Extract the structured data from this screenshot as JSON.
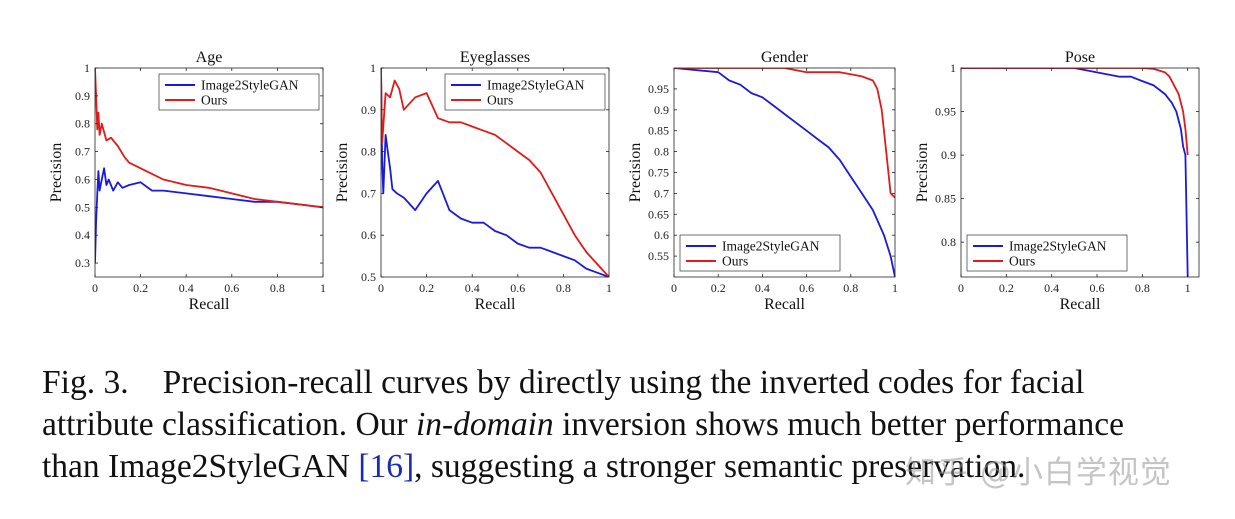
{
  "colors": {
    "image2stylegan": "#1a1adf",
    "ours": "#e01b1b"
  },
  "chart_data": [
    {
      "type": "line",
      "title": "Age",
      "xlabel": "Recall",
      "ylabel": "Precision",
      "xlim": [
        0,
        1
      ],
      "ylim": [
        0.25,
        1
      ],
      "xticks": [
        0,
        0.2,
        0.4,
        0.6,
        0.8,
        1
      ],
      "xtick_labels": [
        "0",
        "0.2",
        "0.4",
        "0.6",
        "0.8",
        "1"
      ],
      "yticks": [
        0.3,
        0.4,
        0.5,
        0.6,
        0.7,
        0.8,
        0.9,
        1
      ],
      "ytick_labels": [
        "0.3",
        "0.4",
        "0.5",
        "0.6",
        "0.7",
        "0.8",
        "0.9",
        "1"
      ],
      "legend": "top-right",
      "series": [
        {
          "name": "Image2StyleGAN",
          "color": "#1a1adf",
          "x": [
            0,
            0.005,
            0.01,
            0.015,
            0.02,
            0.03,
            0.04,
            0.05,
            0.06,
            0.08,
            0.1,
            0.12,
            0.15,
            0.2,
            0.25,
            0.3,
            0.4,
            0.5,
            0.6,
            0.7,
            0.8,
            0.9,
            1.0
          ],
          "y": [
            0.3,
            0.45,
            0.55,
            0.63,
            0.56,
            0.6,
            0.64,
            0.58,
            0.6,
            0.56,
            0.59,
            0.57,
            0.58,
            0.59,
            0.56,
            0.56,
            0.55,
            0.54,
            0.53,
            0.52,
            0.52,
            0.51,
            0.5
          ]
        },
        {
          "name": "Ours",
          "color": "#e01b1b",
          "x": [
            0,
            0.005,
            0.01,
            0.015,
            0.02,
            0.03,
            0.05,
            0.07,
            0.1,
            0.13,
            0.15,
            0.2,
            0.25,
            0.3,
            0.35,
            0.4,
            0.5,
            0.6,
            0.7,
            0.8,
            0.9,
            1.0
          ],
          "y": [
            1.0,
            0.9,
            0.78,
            0.84,
            0.76,
            0.8,
            0.74,
            0.75,
            0.72,
            0.68,
            0.66,
            0.64,
            0.62,
            0.6,
            0.59,
            0.58,
            0.57,
            0.55,
            0.53,
            0.52,
            0.51,
            0.5
          ]
        }
      ]
    },
    {
      "type": "line",
      "title": "Eyeglasses",
      "xlabel": "Recall",
      "ylabel": "Precision",
      "xlim": [
        0,
        1
      ],
      "ylim": [
        0.5,
        1
      ],
      "xticks": [
        0,
        0.2,
        0.4,
        0.6,
        0.8,
        1
      ],
      "xtick_labels": [
        "0",
        "0.2",
        "0.4",
        "0.6",
        "0.8",
        "1"
      ],
      "yticks": [
        0.5,
        0.6,
        0.7,
        0.8,
        0.9,
        1
      ],
      "ytick_labels": [
        "0.5",
        "0.6",
        "0.7",
        "0.8",
        "0.9",
        "1"
      ],
      "legend": "top-right",
      "series": [
        {
          "name": "Image2StyleGAN",
          "color": "#1a1adf",
          "x": [
            0,
            0.005,
            0.01,
            0.02,
            0.03,
            0.04,
            0.05,
            0.07,
            0.1,
            0.15,
            0.2,
            0.25,
            0.3,
            0.35,
            0.4,
            0.45,
            0.5,
            0.55,
            0.6,
            0.65,
            0.7,
            0.75,
            0.8,
            0.85,
            0.9,
            0.95,
            1.0
          ],
          "y": [
            1.0,
            0.78,
            0.7,
            0.84,
            0.8,
            0.76,
            0.71,
            0.7,
            0.69,
            0.66,
            0.7,
            0.73,
            0.66,
            0.64,
            0.63,
            0.63,
            0.61,
            0.6,
            0.58,
            0.57,
            0.57,
            0.56,
            0.55,
            0.54,
            0.52,
            0.51,
            0.5
          ]
        },
        {
          "name": "Ours",
          "color": "#e01b1b",
          "x": [
            0,
            0.005,
            0.01,
            0.02,
            0.04,
            0.06,
            0.08,
            0.1,
            0.15,
            0.2,
            0.25,
            0.3,
            0.35,
            0.4,
            0.45,
            0.5,
            0.55,
            0.6,
            0.65,
            0.7,
            0.75,
            0.8,
            0.85,
            0.9,
            0.95,
            1.0
          ],
          "y": [
            1.0,
            0.82,
            0.86,
            0.94,
            0.93,
            0.97,
            0.95,
            0.9,
            0.93,
            0.94,
            0.88,
            0.87,
            0.87,
            0.86,
            0.85,
            0.84,
            0.82,
            0.8,
            0.78,
            0.75,
            0.7,
            0.65,
            0.6,
            0.56,
            0.53,
            0.5
          ]
        }
      ]
    },
    {
      "type": "line",
      "title": "Gender",
      "xlabel": "Recall",
      "ylabel": "Precision",
      "xlim": [
        0,
        1
      ],
      "ylim": [
        0.5,
        1
      ],
      "xticks": [
        0,
        0.2,
        0.4,
        0.6,
        0.8,
        1
      ],
      "xtick_labels": [
        "0",
        "0.2",
        "0.4",
        "0.6",
        "0.8",
        "1"
      ],
      "yticks": [
        0.55,
        0.6,
        0.65,
        0.7,
        0.75,
        0.8,
        0.85,
        0.9,
        0.95
      ],
      "ytick_labels": [
        "0.55",
        "0.6",
        "0.65",
        "0.7",
        "0.75",
        "0.8",
        "0.85",
        "0.9",
        "0.95"
      ],
      "legend": "bottom-left",
      "series": [
        {
          "name": "Image2StyleGAN",
          "color": "#1a1adf",
          "x": [
            0,
            0.2,
            0.25,
            0.3,
            0.35,
            0.4,
            0.45,
            0.5,
            0.55,
            0.6,
            0.65,
            0.7,
            0.75,
            0.8,
            0.85,
            0.9,
            0.95,
            0.98,
            1.0
          ],
          "y": [
            1.0,
            0.99,
            0.97,
            0.96,
            0.94,
            0.93,
            0.91,
            0.89,
            0.87,
            0.85,
            0.83,
            0.81,
            0.78,
            0.74,
            0.7,
            0.66,
            0.6,
            0.55,
            0.5
          ]
        },
        {
          "name": "Ours",
          "color": "#e01b1b",
          "x": [
            0,
            0.4,
            0.5,
            0.6,
            0.7,
            0.75,
            0.8,
            0.85,
            0.9,
            0.92,
            0.94,
            0.96,
            0.98,
            1.0
          ],
          "y": [
            1.0,
            1.0,
            1.0,
            0.99,
            0.99,
            0.99,
            0.985,
            0.98,
            0.97,
            0.95,
            0.9,
            0.8,
            0.7,
            0.69
          ]
        }
      ]
    },
    {
      "type": "line",
      "title": "Pose",
      "xlabel": "Recall",
      "ylabel": "Precision",
      "xlim": [
        0,
        1.05
      ],
      "ylim": [
        0.76,
        1.0
      ],
      "xticks": [
        0,
        0.2,
        0.4,
        0.6,
        0.8,
        1
      ],
      "xtick_labels": [
        "0",
        "0.2",
        "0.4",
        "0.6",
        "0.8",
        "1"
      ],
      "yticks": [
        0.8,
        0.85,
        0.9,
        0.95,
        1
      ],
      "ytick_labels": [
        "0.8",
        "0.85",
        "0.9",
        "0.95",
        "1"
      ],
      "legend": "bottom-left",
      "series": [
        {
          "name": "Image2StyleGAN",
          "color": "#1a1adf",
          "x": [
            0,
            0.5,
            0.6,
            0.7,
            0.75,
            0.8,
            0.85,
            0.9,
            0.93,
            0.95,
            0.97,
            0.98,
            0.99,
            1.0
          ],
          "y": [
            1.0,
            1.0,
            0.995,
            0.99,
            0.99,
            0.985,
            0.98,
            0.97,
            0.96,
            0.95,
            0.93,
            0.91,
            0.9,
            0.76
          ]
        },
        {
          "name": "Ours",
          "color": "#e01b1b",
          "x": [
            0,
            0.5,
            0.8,
            0.85,
            0.9,
            0.92,
            0.94,
            0.96,
            0.98,
            0.99,
            1.0
          ],
          "y": [
            1.0,
            1.0,
            1.0,
            0.999,
            0.995,
            0.99,
            0.98,
            0.97,
            0.95,
            0.93,
            0.9
          ]
        }
      ]
    }
  ],
  "caption": {
    "fig_label": "Fig. 3.",
    "line1": "Precision-recall curves by directly using the inverted codes for facial",
    "line2_a": "attribute classification. Our ",
    "line2_emph": "in-domain",
    "line2_b": " inversion shows much better performance",
    "line3_a": "than Image2StyleGAN ",
    "line3_ref": "[16]",
    "line3_b": ", suggesting a stronger semantic preservation."
  },
  "watermark": "知乎 @小白学视觉"
}
